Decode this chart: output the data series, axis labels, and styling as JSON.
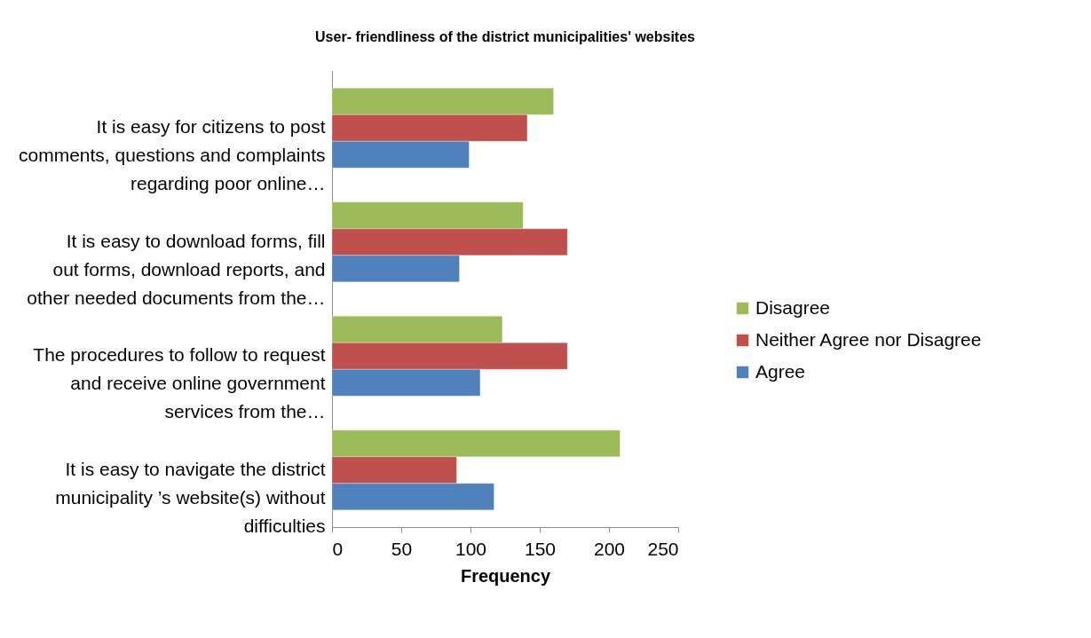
{
  "chart_data": {
    "type": "bar",
    "orientation": "horizontal",
    "title": "User- friendliness of  the district municipalities' websites",
    "xlabel": "Frequency",
    "categories": [
      "It is easy for citizens to post comments, questions and complaints regarding poor online…",
      "It is easy to download forms, fill out forms, download reports, and other needed documents from the…",
      "The procedures to follow  to request and receive online government services from the…",
      "It is easy to navigate the district municipality ’s website(s) without difficulties"
    ],
    "series": [
      {
        "name": "Disagree",
        "color": "#9bbb59",
        "values": [
          160,
          138,
          123,
          208
        ]
      },
      {
        "name": "Neither Agree nor Disagree",
        "color": "#c0504d",
        "values": [
          141,
          170,
          170,
          90
        ]
      },
      {
        "name": "Agree",
        "color": "#4f81bd",
        "values": [
          99,
          92,
          107,
          117
        ]
      }
    ],
    "xlim": [
      0,
      250
    ],
    "xticks": [
      0,
      50,
      100,
      150,
      200,
      250
    ],
    "grid": false,
    "legend": "right"
  }
}
